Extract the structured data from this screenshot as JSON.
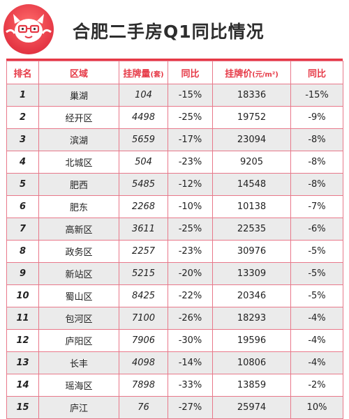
{
  "title": "合肥二手房Q1同比情况",
  "colors": {
    "accent": "#e63946",
    "border": "#e8788a",
    "alt_row": "#ebebeb"
  },
  "table": {
    "headers": {
      "rank": "排名",
      "district": "区域",
      "listings": "挂牌量",
      "listings_unit": "(套)",
      "listings_yoy": "同比",
      "price": "挂牌价",
      "price_unit": "(元/m²)",
      "price_yoy": "同比"
    },
    "rows": [
      {
        "rank": "1",
        "district": "巢湖",
        "listings": "104",
        "listings_yoy": "-15%",
        "price": "18336",
        "price_yoy": "-15%"
      },
      {
        "rank": "2",
        "district": "经开区",
        "listings": "4498",
        "listings_yoy": "-25%",
        "price": "19752",
        "price_yoy": "-9%"
      },
      {
        "rank": "3",
        "district": "滨湖",
        "listings": "5659",
        "listings_yoy": "-17%",
        "price": "23094",
        "price_yoy": "-8%"
      },
      {
        "rank": "4",
        "district": "北城区",
        "listings": "504",
        "listings_yoy": "-23%",
        "price": "9205",
        "price_yoy": "-8%"
      },
      {
        "rank": "5",
        "district": "肥西",
        "listings": "5485",
        "listings_yoy": "-12%",
        "price": "14548",
        "price_yoy": "-8%"
      },
      {
        "rank": "6",
        "district": "肥东",
        "listings": "2268",
        "listings_yoy": "-10%",
        "price": "10138",
        "price_yoy": "-7%"
      },
      {
        "rank": "7",
        "district": "高新区",
        "listings": "3611",
        "listings_yoy": "-25%",
        "price": "22535",
        "price_yoy": "-6%"
      },
      {
        "rank": "8",
        "district": "政务区",
        "listings": "2257",
        "listings_yoy": "-23%",
        "price": "30976",
        "price_yoy": "-5%"
      },
      {
        "rank": "9",
        "district": "新站区",
        "listings": "5215",
        "listings_yoy": "-20%",
        "price": "13309",
        "price_yoy": "-5%"
      },
      {
        "rank": "10",
        "district": "蜀山区",
        "listings": "8425",
        "listings_yoy": "-22%",
        "price": "20346",
        "price_yoy": "-5%"
      },
      {
        "rank": "11",
        "district": "包河区",
        "listings": "7100",
        "listings_yoy": "-26%",
        "price": "18293",
        "price_yoy": "-4%"
      },
      {
        "rank": "12",
        "district": "庐阳区",
        "listings": "7906",
        "listings_yoy": "-30%",
        "price": "19596",
        "price_yoy": "-4%"
      },
      {
        "rank": "13",
        "district": "长丰",
        "listings": "4098",
        "listings_yoy": "-14%",
        "price": "10806",
        "price_yoy": "-4%"
      },
      {
        "rank": "14",
        "district": "瑶海区",
        "listings": "7898",
        "listings_yoy": "-33%",
        "price": "13859",
        "price_yoy": "-2%"
      },
      {
        "rank": "15",
        "district": "庐江",
        "listings": "76",
        "listings_yoy": "-27%",
        "price": "25974",
        "price_yoy": "10%"
      }
    ]
  },
  "logo": {
    "icon": "mascot-logo-icon"
  }
}
